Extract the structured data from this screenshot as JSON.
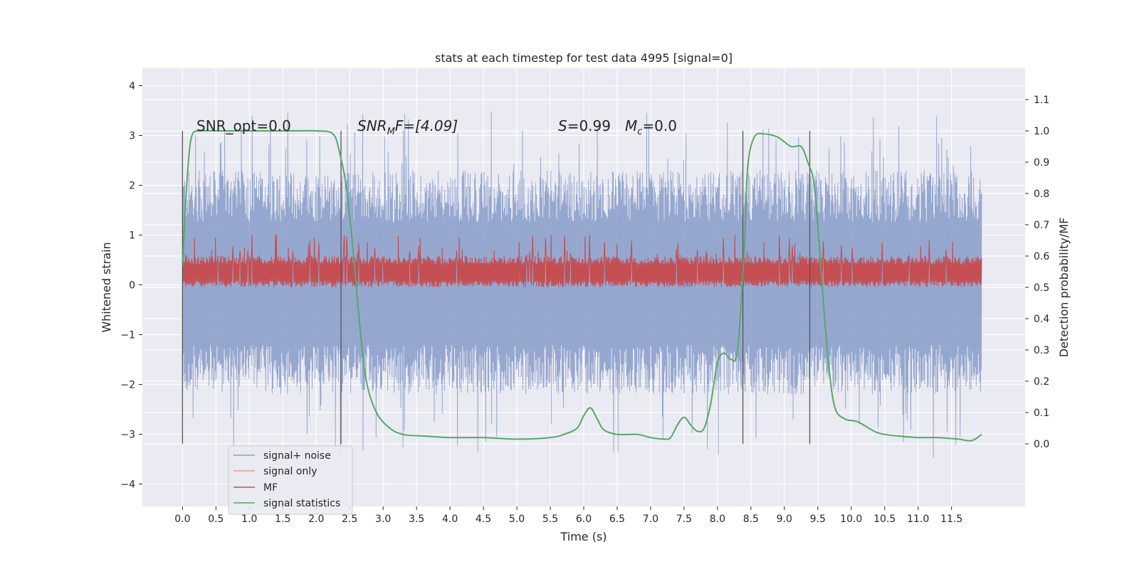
{
  "chart_data": {
    "type": "line",
    "title": "stats at each timestep for test data 4995 [signal=0]",
    "xlabel": "Time (s)",
    "ylabel": "Whitened strain",
    "ylabel_right": "Detection probability/MF",
    "xlim": [
      -0.6,
      12.6
    ],
    "ylim": [
      -4.45,
      4.35
    ],
    "ylim_right": [
      -0.2,
      1.2
    ],
    "x_ticks": [
      "0.0",
      "0.5",
      "1.0",
      "1.5",
      "2.0",
      "2.5",
      "3.0",
      "3.5",
      "4.0",
      "4.5",
      "5.0",
      "5.5",
      "6.0",
      "6.5",
      "7.0",
      "7.5",
      "8.0",
      "8.5",
      "9.0",
      "9.5",
      "10.0",
      "10.5",
      "11.0",
      "11.5"
    ],
    "y_ticks": [
      "−4",
      "−3",
      "−2",
      "−1",
      "0",
      "1",
      "2",
      "3",
      "4"
    ],
    "y_ticks_right": [
      "0.0",
      "0.1",
      "0.2",
      "0.3",
      "0.4",
      "0.5",
      "0.6",
      "0.7",
      "0.8",
      "0.9",
      "1.0",
      "1.1"
    ],
    "grid": true,
    "legend_placement": "lower-left",
    "annotations": {
      "snr_opt": "SNR_opt=0.0",
      "snr_mf_main": "SNR",
      "snr_mf_sub": "M",
      "snr_mf_tail": "F=[4.09]",
      "s_main": "S",
      "s_tail": "=0.99",
      "mc_main": "M",
      "mc_sub": "c",
      "mc_tail": "=0.0"
    },
    "vertical_markers": [
      0.0,
      2.37,
      8.38,
      9.38
    ],
    "series": [
      {
        "name": "signal+ noise",
        "color": "#8da0cb",
        "axis": "left",
        "style": "noise",
        "x_range": [
          0.0,
          11.95
        ],
        "envelope_typical": [
          -2.2,
          2.3
        ],
        "extremes": [
          -4.1,
          3.95
        ]
      },
      {
        "name": "signal only",
        "color": "#e8a088",
        "axis": "left",
        "values": []
      },
      {
        "name": "MF",
        "color": "#c44e52",
        "axis": "right",
        "style": "noise",
        "x_range": [
          0.0,
          11.95
        ],
        "band": [
          0.5,
          0.6
        ],
        "extremes": [
          0.495,
          0.67
        ]
      },
      {
        "name": "signal statistics",
        "color": "#55a868",
        "axis": "right",
        "x": [
          0.0,
          0.05,
          0.1,
          0.15,
          0.25,
          0.5,
          1.0,
          1.5,
          2.0,
          2.25,
          2.35,
          2.45,
          2.55,
          2.65,
          2.75,
          2.9,
          3.1,
          3.3,
          3.6,
          4.0,
          4.5,
          5.0,
          5.5,
          5.7,
          5.9,
          6.0,
          6.1,
          6.2,
          6.3,
          6.5,
          6.8,
          7.0,
          7.2,
          7.3,
          7.4,
          7.5,
          7.6,
          7.7,
          7.8,
          7.9,
          8.0,
          8.1,
          8.2,
          8.3,
          8.4,
          8.45,
          8.55,
          8.7,
          8.9,
          9.1,
          9.25,
          9.35,
          9.45,
          9.55,
          9.65,
          9.75,
          9.9,
          10.1,
          10.4,
          10.7,
          11.0,
          11.3,
          11.6,
          11.8,
          11.95
        ],
        "values": [
          0.57,
          0.78,
          0.93,
          0.99,
          1.0,
          1.0,
          1.0,
          1.0,
          1.0,
          0.99,
          0.93,
          0.82,
          0.62,
          0.38,
          0.2,
          0.1,
          0.05,
          0.03,
          0.025,
          0.02,
          0.02,
          0.015,
          0.02,
          0.03,
          0.05,
          0.09,
          0.115,
          0.08,
          0.045,
          0.03,
          0.03,
          0.02,
          0.015,
          0.02,
          0.06,
          0.085,
          0.06,
          0.04,
          0.05,
          0.13,
          0.26,
          0.29,
          0.27,
          0.3,
          0.62,
          0.88,
          0.98,
          0.99,
          0.98,
          0.95,
          0.95,
          0.9,
          0.82,
          0.55,
          0.28,
          0.12,
          0.08,
          0.07,
          0.035,
          0.025,
          0.02,
          0.02,
          0.015,
          0.01,
          0.03
        ]
      }
    ]
  }
}
